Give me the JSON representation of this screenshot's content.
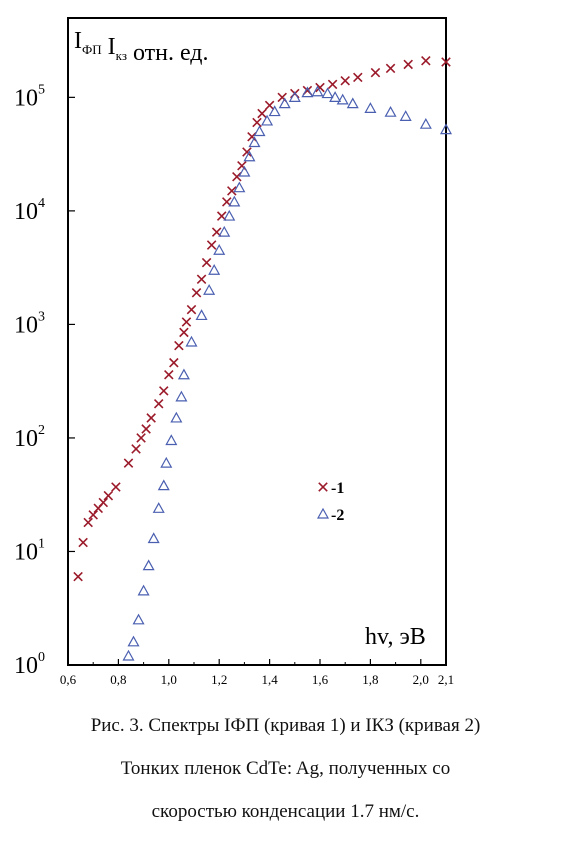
{
  "chart_data": {
    "type": "scatter",
    "ylabel": {
      "parts": [
        {
          "text": "I",
          "sub": "ФП"
        },
        {
          "text": " I",
          "sub": "кз"
        },
        {
          "text": " отн. ед.",
          "sub": ""
        }
      ]
    },
    "xlabel": "hv, эВ",
    "x_ticks": [
      "0,6",
      "0,8",
      "1,0",
      "1,2",
      "1,4",
      "1,6",
      "1,8",
      "2,0",
      "2,1"
    ],
    "x_tick_values": [
      0.6,
      0.8,
      1.0,
      1.2,
      1.4,
      1.6,
      1.8,
      2.0,
      2.1
    ],
    "xlim": [
      0.6,
      2.1
    ],
    "y_scale": "log",
    "ylim": [
      1,
      500000
    ],
    "y_ticks": [
      {
        "value": 1,
        "base": "10",
        "exp": "0"
      },
      {
        "value": 10,
        "base": "10",
        "exp": "1"
      },
      {
        "value": 100,
        "base": "10",
        "exp": "2"
      },
      {
        "value": 1000,
        "base": "10",
        "exp": "3"
      },
      {
        "value": 10000,
        "base": "10",
        "exp": "4"
      },
      {
        "value": 100000,
        "base": "10",
        "exp": "5"
      }
    ],
    "grid": false,
    "legend_position": "center-right",
    "series": [
      {
        "name": "-1",
        "marker": "x",
        "color": "#9b1b2b",
        "points": [
          [
            0.64,
            6
          ],
          [
            0.66,
            12
          ],
          [
            0.68,
            18
          ],
          [
            0.7,
            21
          ],
          [
            0.72,
            24
          ],
          [
            0.74,
            27
          ],
          [
            0.76,
            31
          ],
          [
            0.79,
            37
          ],
          [
            0.84,
            60
          ],
          [
            0.87,
            80
          ],
          [
            0.89,
            100
          ],
          [
            0.91,
            120
          ],
          [
            0.93,
            150
          ],
          [
            0.96,
            200
          ],
          [
            0.98,
            260
          ],
          [
            1.0,
            360
          ],
          [
            1.02,
            460
          ],
          [
            1.04,
            650
          ],
          [
            1.06,
            850
          ],
          [
            1.07,
            1050
          ],
          [
            1.09,
            1350
          ],
          [
            1.11,
            1900
          ],
          [
            1.13,
            2500
          ],
          [
            1.15,
            3500
          ],
          [
            1.17,
            5000
          ],
          [
            1.19,
            6500
          ],
          [
            1.21,
            9000
          ],
          [
            1.23,
            12000
          ],
          [
            1.25,
            15000
          ],
          [
            1.27,
            20000
          ],
          [
            1.29,
            25000
          ],
          [
            1.31,
            33000
          ],
          [
            1.33,
            45000
          ],
          [
            1.35,
            60000
          ],
          [
            1.37,
            72000
          ],
          [
            1.4,
            85000
          ],
          [
            1.45,
            100000
          ],
          [
            1.5,
            108000
          ],
          [
            1.55,
            115000
          ],
          [
            1.6,
            122000
          ],
          [
            1.65,
            130000
          ],
          [
            1.7,
            140000
          ],
          [
            1.75,
            150000
          ],
          [
            1.82,
            165000
          ],
          [
            1.88,
            180000
          ],
          [
            1.95,
            195000
          ],
          [
            2.02,
            210000
          ],
          [
            2.1,
            205000
          ]
        ]
      },
      {
        "name": "-2",
        "marker": "triangle",
        "color": "#4a5fb0",
        "points": [
          [
            0.84,
            1.2
          ],
          [
            0.86,
            1.6
          ],
          [
            0.88,
            2.5
          ],
          [
            0.9,
            4.5
          ],
          [
            0.92,
            7.5
          ],
          [
            0.94,
            13
          ],
          [
            0.96,
            24
          ],
          [
            0.98,
            38
          ],
          [
            0.99,
            60
          ],
          [
            1.01,
            95
          ],
          [
            1.03,
            150
          ],
          [
            1.05,
            230
          ],
          [
            1.06,
            360
          ],
          [
            1.09,
            700
          ],
          [
            1.13,
            1200
          ],
          [
            1.16,
            2000
          ],
          [
            1.18,
            3000
          ],
          [
            1.2,
            4500
          ],
          [
            1.22,
            6500
          ],
          [
            1.24,
            9000
          ],
          [
            1.26,
            12000
          ],
          [
            1.28,
            16000
          ],
          [
            1.3,
            22000
          ],
          [
            1.32,
            30000
          ],
          [
            1.34,
            40000
          ],
          [
            1.36,
            50000
          ],
          [
            1.39,
            62000
          ],
          [
            1.42,
            75000
          ],
          [
            1.46,
            88000
          ],
          [
            1.5,
            100000
          ],
          [
            1.55,
            110000
          ],
          [
            1.59,
            112000
          ],
          [
            1.63,
            108000
          ],
          [
            1.66,
            100000
          ],
          [
            1.69,
            95000
          ],
          [
            1.73,
            88000
          ],
          [
            1.8,
            80000
          ],
          [
            1.88,
            74000
          ],
          [
            1.94,
            68000
          ],
          [
            2.02,
            58000
          ],
          [
            2.1,
            52000
          ]
        ]
      }
    ]
  },
  "caption": {
    "line1": "Рис. 3. Спектры IФП (кривая 1) и IКЗ (кривая 2)",
    "line2": "Тонких пленок CdTe: Ag, полученных со",
    "line3": "скоростью конденсации 1.7 нм/с."
  }
}
